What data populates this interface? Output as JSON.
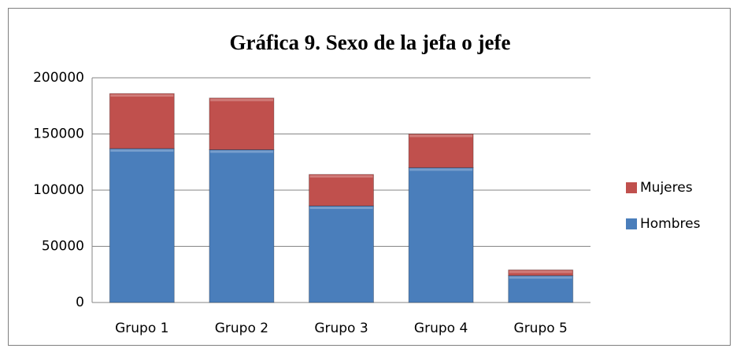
{
  "chart_data": {
    "type": "stacked_bar",
    "title": "Gráfica 9. Sexo de la jefa o jefe",
    "categories": [
      "Grupo 1",
      "Grupo 2",
      "Grupo 3",
      "Grupo 4",
      "Grupo 5"
    ],
    "series": [
      {
        "name": "Hombres",
        "color": "#4a7ebb",
        "values": [
          137000,
          136000,
          86000,
          120000,
          24000
        ]
      },
      {
        "name": "Mujeres",
        "color": "#c0504d",
        "values": [
          49000,
          46000,
          28000,
          30000,
          5000
        ]
      }
    ],
    "ylim": [
      0,
      200000
    ],
    "yticks": [
      0,
      50000,
      100000,
      150000,
      200000
    ],
    "grid": true,
    "legend": "right"
  }
}
